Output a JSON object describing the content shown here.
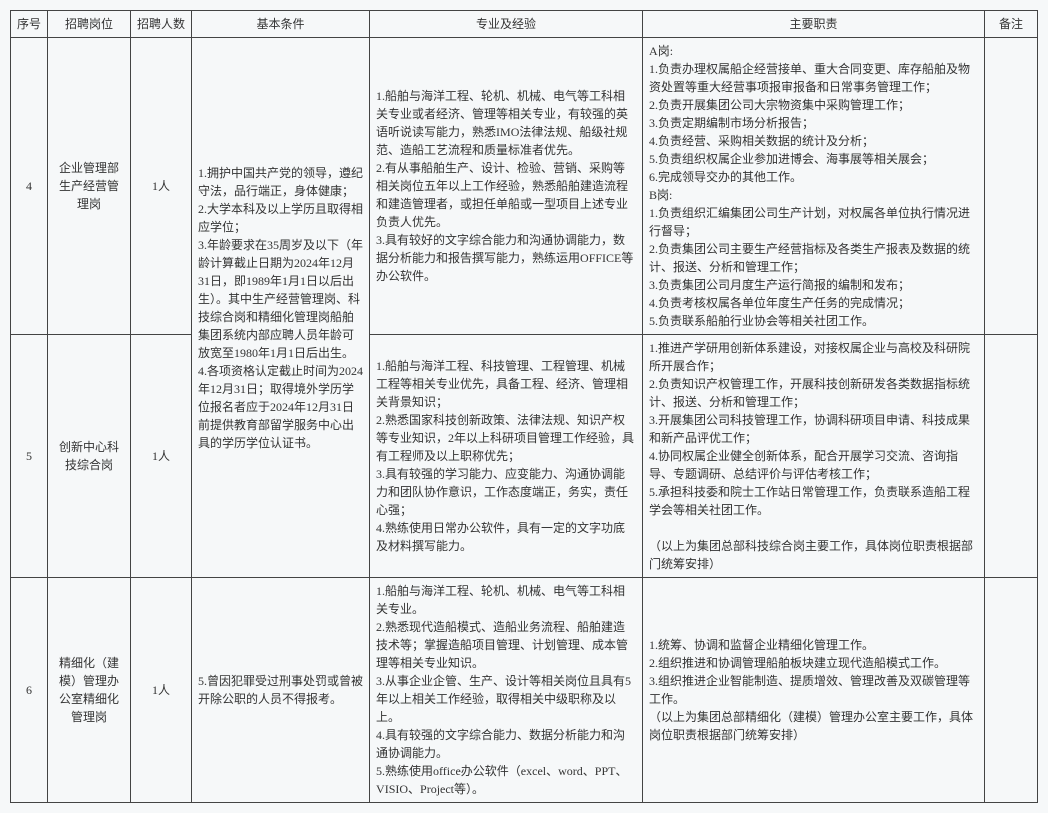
{
  "headers": {
    "seq": "序号",
    "position": "招聘岗位",
    "count": "招聘人数",
    "basic": "基本条件",
    "exp": "专业及经验",
    "duty": "主要职责",
    "remark": "备注"
  },
  "rows": [
    {
      "seq": "4",
      "position": "企业管理部生产经营管理岗",
      "count": "1人",
      "basic_rowspan": 2,
      "basic": "1.拥护中国共产党的领导，遵纪守法，品行端正，身体健康；\n2.大学本科及以上学历且取得相应学位；\n3.年龄要求在35周岁及以下（年龄计算截止日期为2024年12月31日，即1989年1月1日以后出生）。其中生产经营管理岗、科技综合岗和精细化管理岗船舶集团系统内部应聘人员年龄可放宽至1980年1月1日后出生。\n4.各项资格认定截止时间为2024年12月31日；取得境外学历学位报名者应于2024年12月31日前提供教育部留学服务中心出具的学历学位认证书。",
      "exp": "1.船舶与海洋工程、轮机、机械、电气等工科相关专业或者经济、管理等相关专业，有较强的英语听说读写能力，熟悉IMO法律法规、船级社规范、造船工艺流程和质量标准者优先。\n2.有从事船舶生产、设计、检验、营销、采购等相关岗位五年以上工作经验，熟悉船舶建造流程和建造管理者，或担任单船或一型项目上述专业负责人优先。\n3.具有较好的文字综合能力和沟通协调能力，数据分析能力和报告撰写能力，熟练运用OFFICE等办公软件。",
      "duty": "A岗:\n1.负责办理权属船企经营接单、重大合同变更、库存船舶及物资处置等重大经营事项报审报备和日常事务管理工作；\n2.负责开展集团公司大宗物资集中采购管理工作；\n3.负责定期编制市场分析报告；\n4.负责经营、采购相关数据的统计及分析；\n5.负责组织权属企业参加进博会、海事展等相关展会；\n6.完成领导交办的其他工作。\nB岗:\n1.负责组织汇编集团公司生产计划，对权属各单位执行情况进行督导；\n2.负责集团公司主要生产经营指标及各类生产报表及数据的统计、报送、分析和管理工作；\n3.负责集团公司月度生产运行简报的编制和发布；\n4.负责考核权属各单位年度生产任务的完成情况；\n5.负责联系船舶行业协会等相关社团工作。",
      "remark": ""
    },
    {
      "seq": "5",
      "position": "创新中心科技综合岗",
      "count": "1人",
      "exp": "1.船舶与海洋工程、科技管理、工程管理、机械工程等相关专业优先，具备工程、经济、管理相关背景知识；\n2.熟悉国家科技创新政策、法律法规、知识产权等专业知识，2年以上科研项目管理工作经验，具有工程师及以上职称优先；\n3.具有较强的学习能力、应变能力、沟通协调能力和团队协作意识，工作态度端正，务实，责任心强；\n4.熟练使用日常办公软件，具有一定的文字功底及材料撰写能力。",
      "duty": "1.推进产学研用创新体系建设，对接权属企业与高校及科研院所开展合作；\n2.负责知识产权管理工作，开展科技创新研发各类数据指标统计、报送、分析和管理工作；\n3.开展集团公司科技管理工作，协调科研项目申请、科技成果和新产品评优工作；\n4.协同权属企业健全创新体系，配合开展学习交流、咨询指导、专题调研、总结评价与评估考核工作；\n5.承担科技委和院士工作站日常管理工作，负责联系造船工程学会等相关社团工作。\n\n（以上为集团总部科技综合岗主要工作，具体岗位职责根据部门统筹安排）",
      "remark": ""
    },
    {
      "seq": "6",
      "position": "精细化（建模）管理办公室精细化管理岗",
      "count": "1人",
      "basic": "5.曾因犯罪受过刑事处罚或曾被开除公职的人员不得报考。",
      "exp": "1.船舶与海洋工程、轮机、机械、电气等工科相关专业。\n2.熟悉现代造船模式、造船业务流程、船舶建造技术等；掌握造船项目管理、计划管理、成本管理等相关专业知识。\n3.从事企业企管、生产、设计等相关岗位且具有5年以上相关工作经验，取得相关中级职称及以上。\n4.具有较强的文字综合能力、数据分析能力和沟通协调能力。\n5.熟练使用office办公软件（excel、word、PPT、VISIO、Project等）。",
      "duty": "1.统筹、协调和监督企业精细化管理工作。\n2.组织推进和协调管理船舶板块建立现代造船模式工作。\n3.组织推进企业智能制造、提质增效、管理改善及双碳管理等工作。\n（以上为集团总部精细化（建模）管理办公室主要工作，具体岗位职责根据部门统筹安排）",
      "remark": ""
    }
  ]
}
